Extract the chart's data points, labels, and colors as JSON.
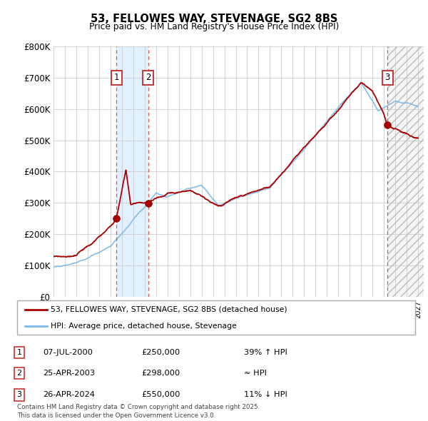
{
  "title": "53, FELLOWES WAY, STEVENAGE, SG2 8BS",
  "subtitle": "Price paid vs. HM Land Registry's House Price Index (HPI)",
  "ylim": [
    0,
    800000
  ],
  "yticks": [
    0,
    100000,
    200000,
    300000,
    400000,
    500000,
    600000,
    700000,
    800000
  ],
  "ytick_labels": [
    "£0",
    "£100K",
    "£200K",
    "£300K",
    "£400K",
    "£500K",
    "£600K",
    "£700K",
    "£800K"
  ],
  "xlim_start": 1995.0,
  "xlim_end": 2027.5,
  "sale_dates": [
    2000.52,
    2003.32,
    2024.32
  ],
  "sale_prices": [
    250000,
    298000,
    550000
  ],
  "sale_labels": [
    "1",
    "2",
    "3"
  ],
  "hpi_line_color": "#7ab8e8",
  "price_line_color": "#aa0000",
  "sale_marker_color": "#aa0000",
  "legend_entries": [
    "53, FELLOWES WAY, STEVENAGE, SG2 8BS (detached house)",
    "HPI: Average price, detached house, Stevenage"
  ],
  "table_rows": [
    {
      "label": "1",
      "date": "07-JUL-2000",
      "price": "£250,000",
      "note": "39% ↑ HPI"
    },
    {
      "label": "2",
      "date": "25-APR-2003",
      "price": "£298,000",
      "note": "≈ HPI"
    },
    {
      "label": "3",
      "date": "26-APR-2024",
      "price": "£550,000",
      "note": "11% ↓ HPI"
    }
  ],
  "footnote": "Contains HM Land Registry data © Crown copyright and database right 2025.\nThis data is licensed under the Open Government Licence v3.0.",
  "background_color": "#ffffff",
  "plot_bg_color": "#ffffff",
  "grid_color": "#cccccc",
  "shaded_region_color": "#ddeeff",
  "hatch_color": "#d8d8d8"
}
